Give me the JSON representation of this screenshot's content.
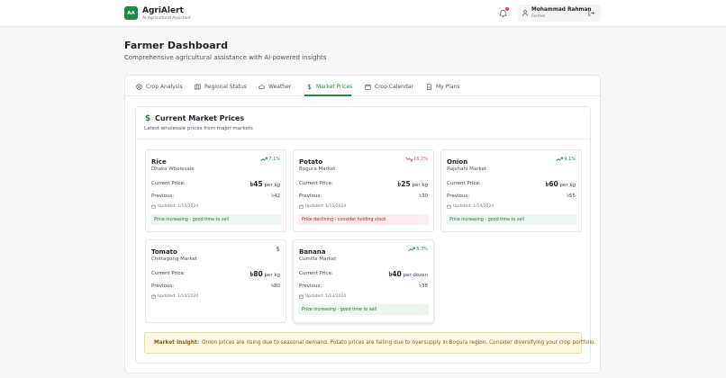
{
  "app": {
    "logo_text": "AA",
    "name": "AgriAlert",
    "subtitle": "AI Agricultural Assistant"
  },
  "user": {
    "name": "Mohammad Rahman",
    "role": "Farmer"
  },
  "page": {
    "title": "Farmer Dashboard",
    "subtitle": "Comprehensive agricultural assistance with AI-powered insights"
  },
  "tabs": [
    {
      "label": "Crop Analysis",
      "icon": "target-icon"
    },
    {
      "label": "Regional Status",
      "icon": "map-icon"
    },
    {
      "label": "Weather",
      "icon": "cloud-icon"
    },
    {
      "label": "Market Prices",
      "icon": "dollar-icon",
      "active": true
    },
    {
      "label": "Crop Calendar",
      "icon": "calendar-icon"
    },
    {
      "label": "My Plans",
      "icon": "document-icon"
    }
  ],
  "market": {
    "icon": "$",
    "title": "Current Market Prices",
    "subtitle": "Latest wholesale prices from major markets",
    "current_label": "Current Price:",
    "previous_label": "Previous:",
    "crops": [
      {
        "name": "Rice",
        "market": "Dhaka Wholesale",
        "trend": "up",
        "change": "7.1%",
        "price": "৳45",
        "unit": "per kg",
        "previous": "৳42",
        "updated": "Updated: 1/15/2024",
        "advice": "Price increasing - good time to sell"
      },
      {
        "name": "Potato",
        "market": "Bogura Market",
        "trend": "down",
        "change": "16.7%",
        "price": "৳25",
        "unit": "per kg",
        "previous": "৳30",
        "updated": "Updated: 1/15/2024",
        "advice": "Price declining - consider holding stock"
      },
      {
        "name": "Onion",
        "market": "Rajshahi Market",
        "trend": "up",
        "change": "9.1%",
        "price": "৳60",
        "unit": "per kg",
        "previous": "৳55",
        "updated": "Updated: 1/14/2024",
        "advice": "Price increasing - good time to sell"
      },
      {
        "name": "Tomato",
        "market": "Chittagong Market",
        "trend": "neutral",
        "change": "$",
        "price": "৳80",
        "unit": "per kg",
        "previous": "৳80",
        "updated": "Updated: 1/14/2024",
        "advice": ""
      },
      {
        "name": "Banana",
        "market": "Cumilla Market",
        "trend": "up",
        "change": "5.3%",
        "price": "৳40",
        "unit": "per dozen",
        "previous": "৳38",
        "updated": "Updated: 1/13/2024",
        "advice": "Price increasing - good time to sell"
      }
    ],
    "insight_label": "Market Insight:",
    "insight_text": "Onion prices are rising due to seasonal demand. Potato prices are falling due to oversupply in Bogura region. Consider diversifying your crop portfolio."
  },
  "colors": {
    "brand": "#1e8a45",
    "down": "#e5484d",
    "insight_bg": "#fef9e6"
  }
}
